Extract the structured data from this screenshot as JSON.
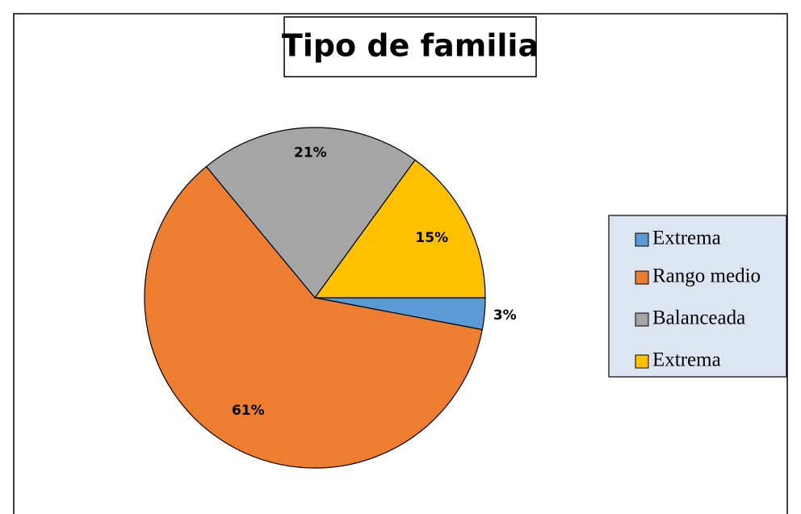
{
  "chart_data": {
    "type": "pie",
    "title": "Tipo de familia",
    "categories": [
      "Extrema",
      "Rango medio",
      "Balanceada",
      "Extrema"
    ],
    "values": [
      3,
      61,
      21,
      15
    ],
    "value_labels": [
      "3%",
      "61%",
      "21%",
      "15%"
    ],
    "colors": [
      "#5b9bd5",
      "#ed7d31",
      "#a5a5a5",
      "#ffc000"
    ],
    "legend": "right"
  }
}
